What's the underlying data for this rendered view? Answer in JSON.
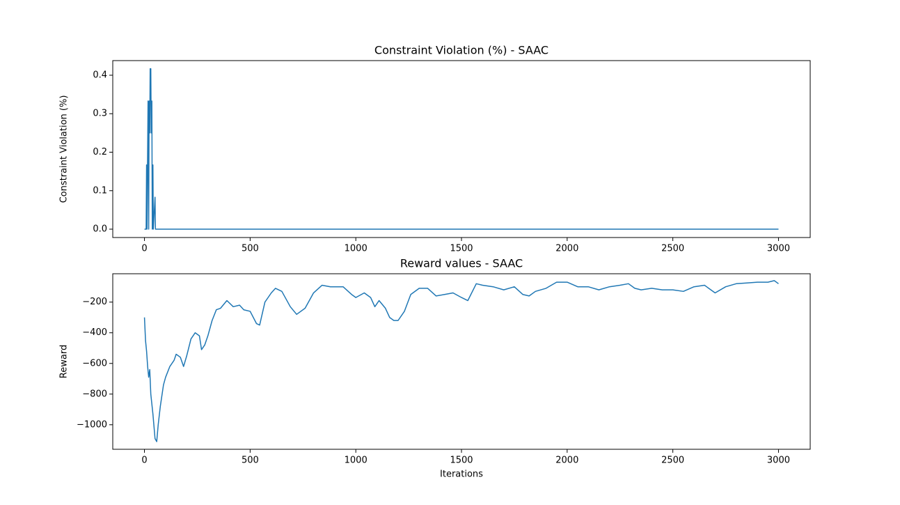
{
  "chart_data": [
    {
      "type": "line",
      "title": "Constraint Violation (%) - SAAC",
      "ylabel": "Constraint Violation (%)",
      "color": "#1f77b4",
      "x": [
        0,
        8,
        10,
        12,
        17,
        20,
        22,
        25,
        27,
        30,
        32,
        35,
        37,
        40,
        42,
        50,
        52,
        3000
      ],
      "values": [
        0,
        0,
        0.167,
        0,
        0.333,
        0,
        0.333,
        0.25,
        0.417,
        0.417,
        0.25,
        0.333,
        0,
        0.167,
        0,
        0.083,
        0,
        0
      ],
      "xlim": [
        -150,
        3150
      ],
      "xticks": [
        0,
        500,
        1000,
        1500,
        2000,
        2500,
        3000
      ],
      "ylim": [
        -0.0217,
        0.438
      ],
      "yticks": [
        {
          "value": 0,
          "label": "0.0"
        },
        0.1,
        0.2,
        0.3,
        0.4
      ]
    },
    {
      "type": "line",
      "title": "Reward values - SAAC",
      "xlabel": "Iterations",
      "ylabel": "Reward",
      "color": "#1f77b4",
      "x": [
        0,
        5,
        10,
        15,
        20,
        25,
        30,
        40,
        50,
        58,
        65,
        75,
        90,
        100,
        120,
        140,
        150,
        170,
        185,
        200,
        220,
        240,
        260,
        270,
        285,
        300,
        320,
        340,
        360,
        390,
        420,
        450,
        470,
        500,
        530,
        545,
        570,
        600,
        620,
        650,
        690,
        720,
        760,
        800,
        840,
        880,
        940,
        980,
        1000,
        1040,
        1070,
        1090,
        1110,
        1140,
        1160,
        1180,
        1200,
        1230,
        1260,
        1300,
        1340,
        1380,
        1420,
        1460,
        1500,
        1530,
        1570,
        1600,
        1650,
        1700,
        1750,
        1790,
        1820,
        1850,
        1900,
        1950,
        2000,
        2050,
        2100,
        2150,
        2200,
        2250,
        2290,
        2320,
        2350,
        2400,
        2450,
        2500,
        2550,
        2600,
        2650,
        2700,
        2750,
        2800,
        2850,
        2900,
        2950,
        2980,
        3000
      ],
      "values": [
        -300,
        -450,
        -520,
        -620,
        -690,
        -640,
        -800,
        -930,
        -1090,
        -1110,
        -1000,
        -880,
        -740,
        -690,
        -620,
        -580,
        -540,
        -560,
        -620,
        -550,
        -440,
        -400,
        -420,
        -510,
        -480,
        -420,
        -320,
        -250,
        -240,
        -190,
        -230,
        -220,
        -250,
        -260,
        -340,
        -350,
        -200,
        -140,
        -110,
        -130,
        -230,
        -280,
        -240,
        -140,
        -90,
        -100,
        -100,
        -150,
        -170,
        -140,
        -170,
        -230,
        -190,
        -240,
        -300,
        -320,
        -320,
        -260,
        -150,
        -110,
        -110,
        -160,
        -150,
        -140,
        -170,
        -190,
        -80,
        -90,
        -100,
        -120,
        -100,
        -150,
        -160,
        -130,
        -110,
        -70,
        -70,
        -100,
        -100,
        -120,
        -100,
        -90,
        -80,
        -110,
        -120,
        -110,
        -120,
        -120,
        -130,
        -100,
        -90,
        -140,
        -100,
        -80,
        -75,
        -70,
        -70,
        -60,
        -80
      ],
      "xlim": [
        -150,
        3150
      ],
      "xticks": [
        0,
        500,
        1000,
        1500,
        2000,
        2500,
        3000
      ],
      "ylim": [
        -1160,
        -15
      ],
      "yticks": [
        {
          "value": -1000,
          "label": "−1000"
        },
        {
          "value": -800,
          "label": "−800"
        },
        {
          "value": -600,
          "label": "−600"
        },
        {
          "value": -400,
          "label": "−400"
        },
        {
          "value": -200,
          "label": "−200"
        }
      ]
    }
  ]
}
